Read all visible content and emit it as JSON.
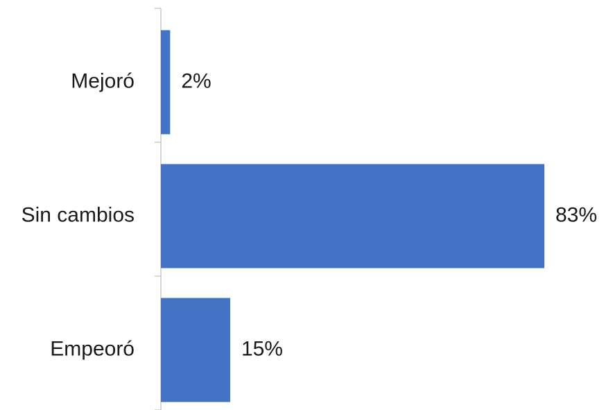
{
  "chart_data": {
    "type": "bar",
    "orientation": "horizontal",
    "categories": [
      "Mejoró",
      "Sin cambios",
      "Empeoró"
    ],
    "values": [
      2,
      83,
      15
    ],
    "data_labels": [
      "2%",
      "83%",
      "15%"
    ],
    "xlim": [
      0,
      83
    ],
    "grid": false,
    "legend": "none",
    "bar_color": "#4472c4",
    "axis_color": "#bfbfbf"
  }
}
